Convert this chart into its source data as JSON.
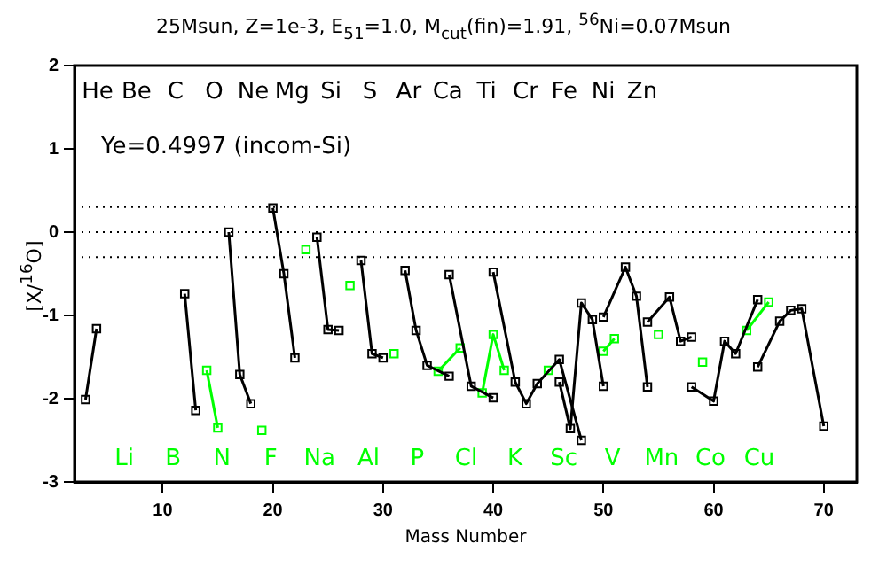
{
  "chart_data": {
    "type": "line",
    "title": "25Msun, Z=1e-3, E$_{51}$=1.0, M$_{cut}$(fin)=1.91, $^{56}$Ni=0.07Msun",
    "xlabel": "Mass Number",
    "ylabel": "[X/$^{16}$O]",
    "xlim": [
      2,
      73
    ],
    "xticks": [
      10,
      20,
      30,
      40,
      50,
      60,
      70
    ],
    "ylim": [
      -3,
      2
    ],
    "yticks": [
      -3,
      -2,
      -1,
      0,
      1,
      2
    ],
    "grid": false,
    "legend": false,
    "marker": "square",
    "line_style": "solid",
    "ref_lines": [
      {
        "axis": "y",
        "value": 0.3,
        "line_style": "dotted"
      },
      {
        "axis": "y",
        "value": 0,
        "line_style": "dotted"
      },
      {
        "axis": "y",
        "value": -0.3,
        "line_style": "dotted"
      }
    ],
    "series": [
      {
        "color": "#000000",
        "x": [
          3,
          4
        ],
        "values": [
          -2.01,
          -1.16
        ]
      },
      {
        "color": "#000000",
        "x": [
          12,
          13
        ],
        "values": [
          -0.74,
          -2.14
        ]
      },
      {
        "color": "#000000",
        "x": [
          16,
          17,
          18
        ],
        "values": [
          0.0,
          -1.71,
          -2.06
        ]
      },
      {
        "color": "#000000",
        "x": [
          20,
          21,
          22
        ],
        "values": [
          0.29,
          -0.5,
          -1.51
        ]
      },
      {
        "color": "#000000",
        "x": [
          24,
          25,
          26
        ],
        "values": [
          -0.06,
          -1.17,
          -1.18
        ]
      },
      {
        "color": "#000000",
        "x": [
          28,
          29,
          30
        ],
        "values": [
          -0.34,
          -1.46,
          -1.51
        ]
      },
      {
        "color": "#000000",
        "x": [
          32,
          33,
          34,
          36
        ],
        "values": [
          -0.46,
          -1.18,
          -1.6,
          -1.73
        ]
      },
      {
        "color": "#000000",
        "x": [
          36,
          38,
          40
        ],
        "values": [
          -0.51,
          -1.85,
          -1.99
        ]
      },
      {
        "color": "#000000",
        "x": [
          40,
          42,
          43,
          44,
          46,
          48
        ],
        "values": [
          -0.48,
          -1.8,
          -2.06,
          -1.82,
          -1.53,
          -2.5
        ]
      },
      {
        "color": "#000000",
        "x": [
          46,
          47,
          48,
          49,
          50
        ],
        "values": [
          -1.8,
          -2.36,
          -0.85,
          -1.05,
          -1.85
        ]
      },
      {
        "color": "#000000",
        "x": [
          50,
          52,
          53,
          54
        ],
        "values": [
          -1.02,
          -0.42,
          -0.77,
          -1.86
        ]
      },
      {
        "color": "#000000",
        "x": [
          54,
          56,
          57,
          58
        ],
        "values": [
          -1.08,
          -0.78,
          -1.31,
          -1.26
        ]
      },
      {
        "color": "#000000",
        "x": [
          58,
          60,
          61,
          62,
          64
        ],
        "values": [
          -1.86,
          -2.03,
          -1.31,
          -1.46,
          -0.81
        ]
      },
      {
        "color": "#000000",
        "x": [
          64,
          66,
          67,
          68,
          70
        ],
        "values": [
          -1.62,
          -1.07,
          -0.94,
          -0.92,
          -2.33
        ]
      },
      {
        "color": "#00ff00",
        "x": [
          14,
          15
        ],
        "values": [
          -1.66,
          -2.35
        ]
      },
      {
        "color": "#00ff00",
        "x": [
          19
        ],
        "values": [
          -2.38
        ]
      },
      {
        "color": "#00ff00",
        "x": [
          23
        ],
        "values": [
          -0.21
        ]
      },
      {
        "color": "#00ff00",
        "x": [
          27
        ],
        "values": [
          -0.64
        ]
      },
      {
        "color": "#00ff00",
        "x": [
          31
        ],
        "values": [
          -1.46
        ]
      },
      {
        "color": "#00ff00",
        "x": [
          35,
          37
        ],
        "values": [
          -1.67,
          -1.39
        ]
      },
      {
        "color": "#00ff00",
        "x": [
          39,
          40,
          41
        ],
        "values": [
          -1.93,
          -1.23,
          -1.66
        ]
      },
      {
        "color": "#00ff00",
        "x": [
          45
        ],
        "values": [
          -1.66
        ]
      },
      {
        "color": "#00ff00",
        "x": [
          50,
          51
        ],
        "values": [
          -1.43,
          -1.28
        ]
      },
      {
        "color": "#00ff00",
        "x": [
          55
        ],
        "values": [
          -1.23
        ]
      },
      {
        "color": "#00ff00",
        "x": [
          59
        ],
        "values": [
          -1.56
        ]
      },
      {
        "color": "#00ff00",
        "x": [
          63,
          65
        ],
        "values": [
          -1.18,
          -0.84
        ]
      }
    ],
    "annotations": [
      "He Be C O Ne Mg Si S Ar Ca Ti Cr Fe Ni Zn",
      "Ye=0.4997 (incom-Si)",
      "Li B N F Na Al P Cl K Sc V Mn Co Cu"
    ]
  }
}
